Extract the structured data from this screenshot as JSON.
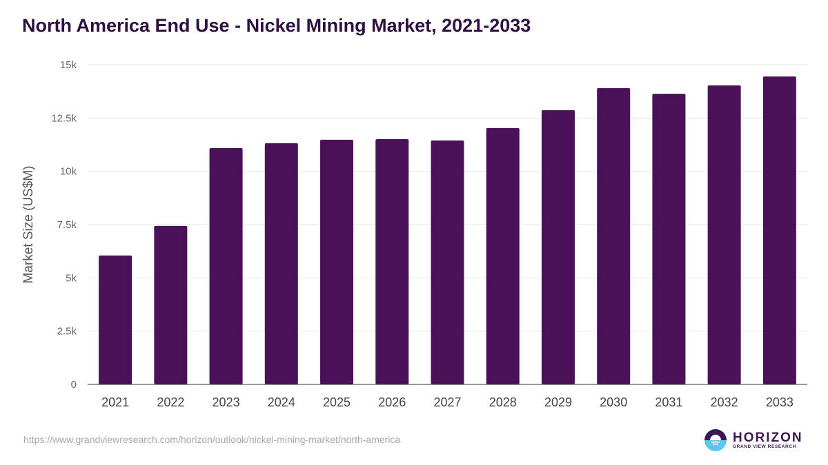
{
  "title": "North America End Use - Nickel Mining Market, 2021-2033",
  "footer_url": "https://www.grandviewresearch.com/horizon/outlook/nickel-mining-market/north-america",
  "logo": {
    "name": "HORIZON",
    "sub": "GRAND VIEW RESEARCH"
  },
  "colors": {
    "bar": "#4b1158",
    "title": "#2d1040",
    "grid": "#e6e6e6"
  },
  "chart_data": {
    "type": "bar",
    "title": "North America End Use - Nickel Mining Market, 2021-2033",
    "xlabel": "",
    "ylabel": "Market Size (US$M)",
    "ylim": [
      0,
      15000
    ],
    "yticks": [
      0,
      2500,
      5000,
      7500,
      10000,
      12500,
      15000
    ],
    "ytick_labels": [
      "0",
      "2.5k",
      "5k",
      "7.5k",
      "10k",
      "12.5k",
      "15k"
    ],
    "grid": true,
    "categories": [
      "2021",
      "2022",
      "2023",
      "2024",
      "2025",
      "2026",
      "2027",
      "2028",
      "2029",
      "2030",
      "2031",
      "2032",
      "2033"
    ],
    "values": [
      6050,
      7440,
      11090,
      11320,
      11480,
      11510,
      11450,
      12030,
      12870,
      13900,
      13640,
      14030,
      14450
    ]
  }
}
